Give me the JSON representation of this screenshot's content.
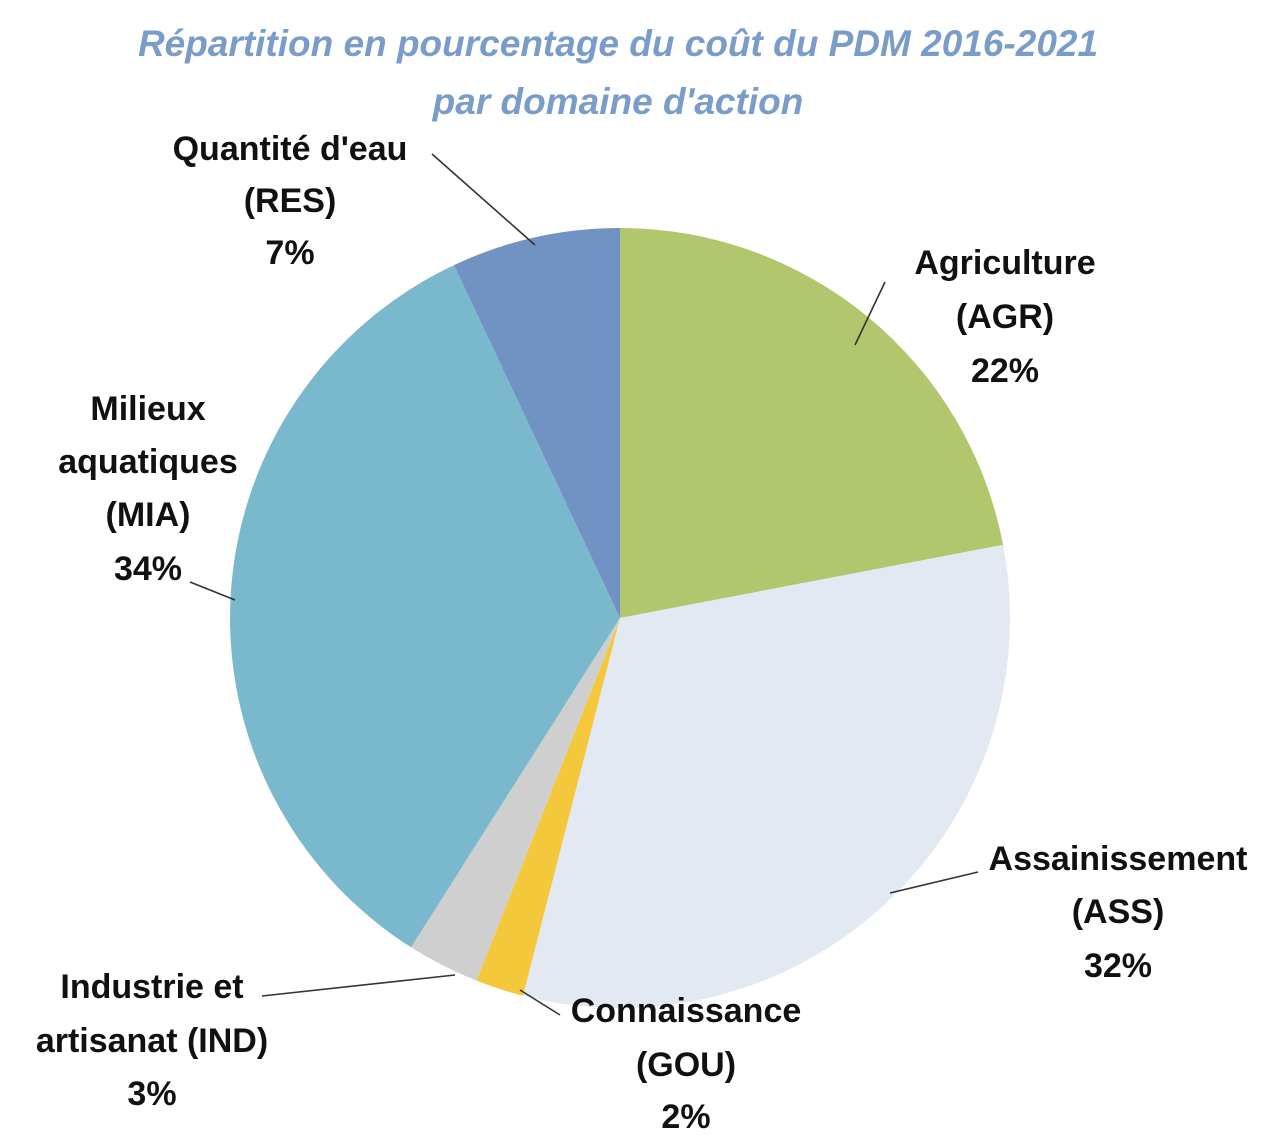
{
  "chart_data": {
    "type": "pie",
    "title": "Répartition en pourcentage du coût du PDM 2016-2021",
    "subtitle": "par domaine d'action",
    "slices": [
      {
        "name": "Agriculture",
        "code": "(AGR)",
        "label_line1": "Agriculture",
        "label_line2": "(AGR)",
        "value": 22,
        "pct_label": "22%",
        "color": "#b2c66e"
      },
      {
        "name": "Assainissement",
        "code": "(ASS)",
        "label_line1": "Assainissement",
        "label_line2": "(ASS)",
        "value": 32,
        "pct_label": "32%",
        "color": "#e3e9f3"
      },
      {
        "name": "Connaissance",
        "code": "(GOU)",
        "label_line1": "Connaissance",
        "label_line2": "(GOU)",
        "value": 2,
        "pct_label": "2%",
        "color": "#f3c83a"
      },
      {
        "name": "Industrie et artisanat",
        "code": "(IND)",
        "label_line1": "Industrie et",
        "label_line2": "artisanat (IND)",
        "value": 3,
        "pct_label": "3%",
        "color": "#cfcfcf"
      },
      {
        "name": "Milieux aquatiques",
        "code": "(MIA)",
        "label_line1": "Milieux",
        "label_line2": "aquatiques",
        "label_line3": "(MIA)",
        "value": 34,
        "pct_label": "34%",
        "color": "#7ab8cd"
      },
      {
        "name": "Quantité d'eau",
        "code": "(RES)",
        "label_line1": "Quantité d'eau",
        "label_line2": "(RES)",
        "value": 7,
        "pct_label": "7%",
        "color": "#7093c4"
      }
    ],
    "start_angle_deg": 0,
    "direction": "clockwise",
    "legend": "none"
  }
}
